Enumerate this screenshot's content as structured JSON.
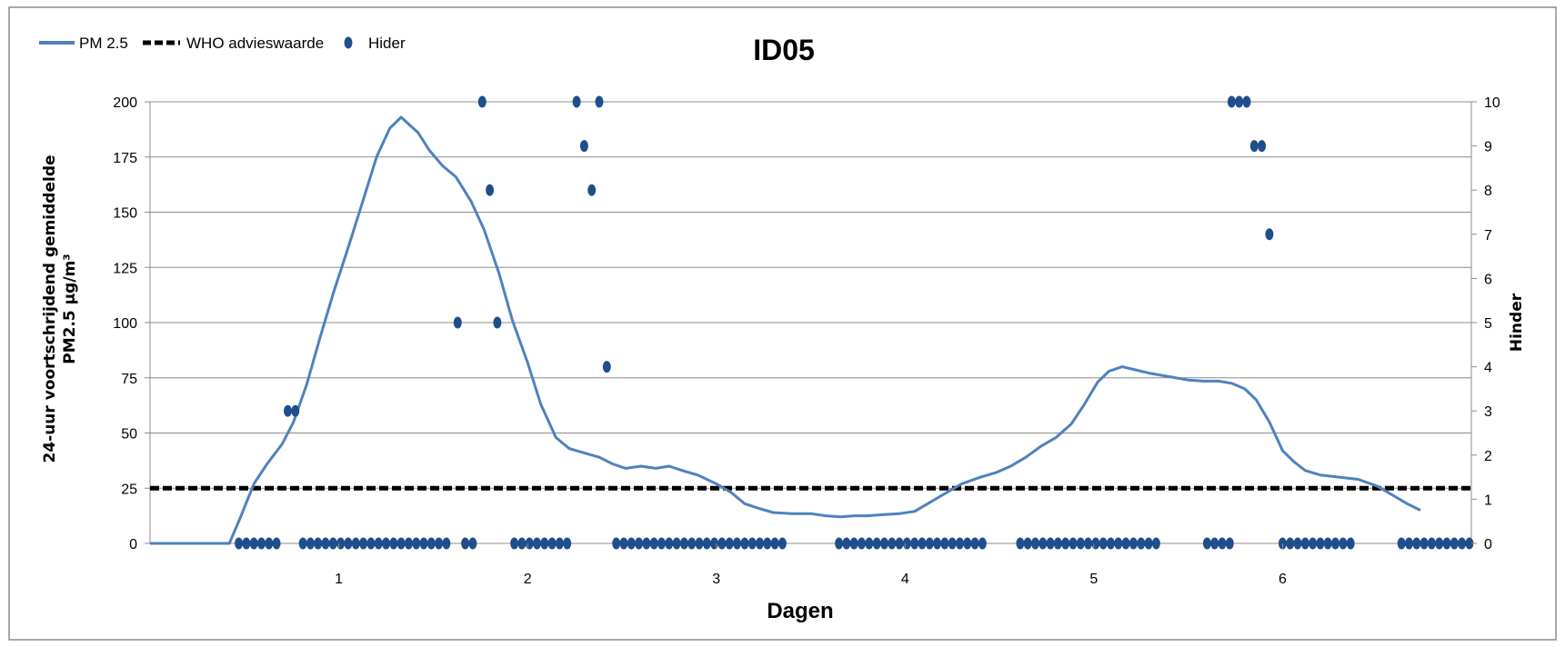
{
  "chart_data": {
    "type": "line",
    "title": "ID05",
    "xlabel": "Dagen",
    "ylabel": "24-uur voortschrijdend gemiddelde PM2.5 µg/m³",
    "y2label": "Hinder",
    "xlim": [
      0,
      7
    ],
    "ylim": [
      0,
      200
    ],
    "y2lim": [
      0,
      10
    ],
    "x_ticks": [
      1,
      2,
      3,
      4,
      5,
      6
    ],
    "y_ticks": [
      0,
      25,
      50,
      75,
      100,
      125,
      150,
      175,
      200
    ],
    "y2_ticks": [
      0,
      1,
      2,
      3,
      4,
      5,
      6,
      7,
      8,
      9,
      10
    ],
    "grid": true,
    "legend_position": "top-left",
    "colors": {
      "line": "#4f81bd",
      "reference": "#000000",
      "markers": "#1f4e8c",
      "frame": "#8c8c8c"
    },
    "series": [
      {
        "name": "PM 2.5",
        "kind": "line",
        "axis": "left",
        "points": [
          [
            0.0,
            0
          ],
          [
            0.42,
            0
          ],
          [
            0.48,
            12
          ],
          [
            0.55,
            27
          ],
          [
            0.62,
            36
          ],
          [
            0.7,
            45
          ],
          [
            0.76,
            55
          ],
          [
            0.83,
            72
          ],
          [
            0.9,
            93
          ],
          [
            0.97,
            113
          ],
          [
            1.05,
            134
          ],
          [
            1.12,
            153
          ],
          [
            1.2,
            175
          ],
          [
            1.27,
            188
          ],
          [
            1.33,
            193
          ],
          [
            1.42,
            186
          ],
          [
            1.48,
            178
          ],
          [
            1.55,
            171
          ],
          [
            1.62,
            166
          ],
          [
            1.7,
            155
          ],
          [
            1.77,
            142
          ],
          [
            1.85,
            122
          ],
          [
            1.92,
            101
          ],
          [
            2.0,
            82
          ],
          [
            2.07,
            63
          ],
          [
            2.15,
            48
          ],
          [
            2.22,
            43
          ],
          [
            2.3,
            41
          ],
          [
            2.38,
            39
          ],
          [
            2.45,
            36
          ],
          [
            2.52,
            34
          ],
          [
            2.6,
            35
          ],
          [
            2.68,
            34
          ],
          [
            2.75,
            35
          ],
          [
            2.82,
            33
          ],
          [
            2.9,
            31
          ],
          [
            3.0,
            27
          ],
          [
            3.08,
            23
          ],
          [
            3.15,
            18
          ],
          [
            3.22,
            16
          ],
          [
            3.3,
            14
          ],
          [
            3.4,
            13.5
          ],
          [
            3.5,
            13.5
          ],
          [
            3.58,
            12.5
          ],
          [
            3.66,
            12
          ],
          [
            3.73,
            12.5
          ],
          [
            3.8,
            12.5
          ],
          [
            3.88,
            13
          ],
          [
            3.97,
            13.5
          ],
          [
            4.05,
            14.5
          ],
          [
            4.12,
            18
          ],
          [
            4.2,
            22
          ],
          [
            4.3,
            27
          ],
          [
            4.4,
            30
          ],
          [
            4.48,
            32
          ],
          [
            4.56,
            35
          ],
          [
            4.64,
            39
          ],
          [
            4.72,
            44
          ],
          [
            4.8,
            48
          ],
          [
            4.88,
            54
          ],
          [
            4.95,
            63
          ],
          [
            5.02,
            73
          ],
          [
            5.08,
            78
          ],
          [
            5.15,
            80
          ],
          [
            5.2,
            79
          ],
          [
            5.3,
            77
          ],
          [
            5.4,
            75.5
          ],
          [
            5.5,
            74
          ],
          [
            5.58,
            73.5
          ],
          [
            5.66,
            73.5
          ],
          [
            5.73,
            72.5
          ],
          [
            5.8,
            70
          ],
          [
            5.86,
            65
          ],
          [
            5.93,
            55
          ],
          [
            6.0,
            42
          ],
          [
            6.06,
            37
          ],
          [
            6.12,
            33
          ],
          [
            6.2,
            31
          ],
          [
            6.3,
            30
          ],
          [
            6.4,
            29
          ],
          [
            6.5,
            26
          ],
          [
            6.58,
            22
          ],
          [
            6.66,
            18
          ],
          [
            6.73,
            15
          ]
        ]
      },
      {
        "name": "WHO advieswaarde",
        "kind": "reference",
        "axis": "left",
        "value": 25
      },
      {
        "name": "Hider",
        "kind": "scatter",
        "axis": "right",
        "points": [
          [
            0.73,
            3
          ],
          [
            0.77,
            3
          ],
          [
            1.63,
            5
          ],
          [
            1.76,
            10
          ],
          [
            1.8,
            8
          ],
          [
            1.84,
            5
          ],
          [
            2.26,
            10
          ],
          [
            2.3,
            9
          ],
          [
            2.34,
            8
          ],
          [
            2.38,
            10
          ],
          [
            2.42,
            4
          ],
          [
            5.73,
            10
          ],
          [
            5.77,
            10
          ],
          [
            5.81,
            10
          ],
          [
            5.85,
            9
          ],
          [
            5.89,
            9
          ],
          [
            5.93,
            7
          ],
          [
            0.47,
            0
          ],
          [
            0.51,
            0
          ],
          [
            0.55,
            0
          ],
          [
            0.59,
            0
          ],
          [
            0.63,
            0
          ],
          [
            0.67,
            0
          ],
          [
            0.81,
            0
          ],
          [
            0.85,
            0
          ],
          [
            0.89,
            0
          ],
          [
            0.93,
            0
          ],
          [
            0.97,
            0
          ],
          [
            1.01,
            0
          ],
          [
            1.05,
            0
          ],
          [
            1.09,
            0
          ],
          [
            1.13,
            0
          ],
          [
            1.17,
            0
          ],
          [
            1.21,
            0
          ],
          [
            1.25,
            0
          ],
          [
            1.29,
            0
          ],
          [
            1.33,
            0
          ],
          [
            1.37,
            0
          ],
          [
            1.41,
            0
          ],
          [
            1.45,
            0
          ],
          [
            1.49,
            0
          ],
          [
            1.53,
            0
          ],
          [
            1.57,
            0
          ],
          [
            1.67,
            0
          ],
          [
            1.71,
            0
          ],
          [
            1.93,
            0
          ],
          [
            1.97,
            0
          ],
          [
            2.01,
            0
          ],
          [
            2.05,
            0
          ],
          [
            2.09,
            0
          ],
          [
            2.13,
            0
          ],
          [
            2.17,
            0
          ],
          [
            2.21,
            0
          ],
          [
            2.47,
            0
          ],
          [
            2.51,
            0
          ],
          [
            2.55,
            0
          ],
          [
            2.59,
            0
          ],
          [
            2.63,
            0
          ],
          [
            2.67,
            0
          ],
          [
            2.71,
            0
          ],
          [
            2.75,
            0
          ],
          [
            2.79,
            0
          ],
          [
            2.83,
            0
          ],
          [
            2.87,
            0
          ],
          [
            2.91,
            0
          ],
          [
            2.95,
            0
          ],
          [
            2.99,
            0
          ],
          [
            3.03,
            0
          ],
          [
            3.07,
            0
          ],
          [
            3.11,
            0
          ],
          [
            3.15,
            0
          ],
          [
            3.19,
            0
          ],
          [
            3.23,
            0
          ],
          [
            3.27,
            0
          ],
          [
            3.31,
            0
          ],
          [
            3.35,
            0
          ],
          [
            3.65,
            0
          ],
          [
            3.69,
            0
          ],
          [
            3.73,
            0
          ],
          [
            3.77,
            0
          ],
          [
            3.81,
            0
          ],
          [
            3.85,
            0
          ],
          [
            3.89,
            0
          ],
          [
            3.93,
            0
          ],
          [
            3.97,
            0
          ],
          [
            4.01,
            0
          ],
          [
            4.05,
            0
          ],
          [
            4.09,
            0
          ],
          [
            4.13,
            0
          ],
          [
            4.17,
            0
          ],
          [
            4.21,
            0
          ],
          [
            4.25,
            0
          ],
          [
            4.29,
            0
          ],
          [
            4.33,
            0
          ],
          [
            4.37,
            0
          ],
          [
            4.41,
            0
          ],
          [
            4.61,
            0
          ],
          [
            4.65,
            0
          ],
          [
            4.69,
            0
          ],
          [
            4.73,
            0
          ],
          [
            4.77,
            0
          ],
          [
            4.81,
            0
          ],
          [
            4.85,
            0
          ],
          [
            4.89,
            0
          ],
          [
            4.93,
            0
          ],
          [
            4.97,
            0
          ],
          [
            5.01,
            0
          ],
          [
            5.05,
            0
          ],
          [
            5.09,
            0
          ],
          [
            5.13,
            0
          ],
          [
            5.17,
            0
          ],
          [
            5.21,
            0
          ],
          [
            5.25,
            0
          ],
          [
            5.29,
            0
          ],
          [
            5.33,
            0
          ],
          [
            5.6,
            0
          ],
          [
            5.64,
            0
          ],
          [
            5.68,
            0
          ],
          [
            5.72,
            0
          ],
          [
            6.0,
            0
          ],
          [
            6.04,
            0
          ],
          [
            6.08,
            0
          ],
          [
            6.12,
            0
          ],
          [
            6.16,
            0
          ],
          [
            6.2,
            0
          ],
          [
            6.24,
            0
          ],
          [
            6.28,
            0
          ],
          [
            6.32,
            0
          ],
          [
            6.36,
            0
          ],
          [
            6.63,
            0
          ],
          [
            6.67,
            0
          ],
          [
            6.71,
            0
          ],
          [
            6.75,
            0
          ],
          [
            6.79,
            0
          ],
          [
            6.83,
            0
          ],
          [
            6.87,
            0
          ],
          [
            6.91,
            0
          ],
          [
            6.95,
            0
          ],
          [
            6.99,
            0
          ]
        ]
      }
    ]
  }
}
